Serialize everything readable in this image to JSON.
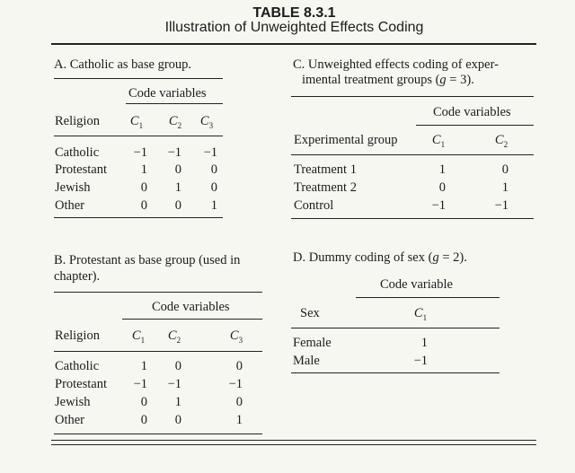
{
  "title": "TABLE 8.3.1",
  "subtitle": "Illustration of Unweighted Effects Coding",
  "panelA": {
    "caption": "A. Catholic as base group.",
    "group_header": "Code variables",
    "col_label": "Religion",
    "code_letter": "C",
    "codes": [
      "1",
      "2",
      "3"
    ],
    "rows": [
      {
        "label": "Catholic",
        "v": [
          "−1",
          "−1",
          "−1"
        ]
      },
      {
        "label": "Protestant",
        "v": [
          "1",
          "0",
          "0"
        ]
      },
      {
        "label": "Jewish",
        "v": [
          "0",
          "1",
          "0"
        ]
      },
      {
        "label": "Other",
        "v": [
          "0",
          "0",
          "1"
        ]
      }
    ]
  },
  "panelB": {
    "caption_line1": "B. Protestant as base group (used in",
    "caption_line2": "chapter).",
    "group_header": "Code variables",
    "col_label": "Religion",
    "code_letter": "C",
    "codes": [
      "1",
      "2",
      "3"
    ],
    "rows": [
      {
        "label": "Catholic",
        "v": [
          "1",
          "0",
          "0"
        ]
      },
      {
        "label": "Protestant",
        "v": [
          "−1",
          "−1",
          "−1"
        ]
      },
      {
        "label": "Jewish",
        "v": [
          "0",
          "1",
          "0"
        ]
      },
      {
        "label": "Other",
        "v": [
          "0",
          "0",
          "1"
        ]
      }
    ]
  },
  "panelC": {
    "caption_line1": "C. Unweighted effects coding of exper-",
    "caption_line2": "imental treatment groups (g = 3).",
    "group_header": "Code variables",
    "col_label": "Experimental group",
    "code_letter": "C",
    "codes": [
      "1",
      "2"
    ],
    "rows": [
      {
        "label": "Treatment 1",
        "v": [
          "1",
          "0"
        ]
      },
      {
        "label": "Treatment 2",
        "v": [
          "0",
          "1"
        ]
      },
      {
        "label": "Control",
        "v": [
          "−1",
          "−1"
        ]
      }
    ]
  },
  "panelD": {
    "caption": "D. Dummy coding of sex (g = 2).",
    "group_header": "Code variable",
    "col_label": "Sex",
    "code_letter": "C",
    "codes": [
      "1"
    ],
    "rows": [
      {
        "label": "Female",
        "v": [
          "1"
        ]
      },
      {
        "label": "Male",
        "v": [
          "−1"
        ]
      }
    ]
  }
}
